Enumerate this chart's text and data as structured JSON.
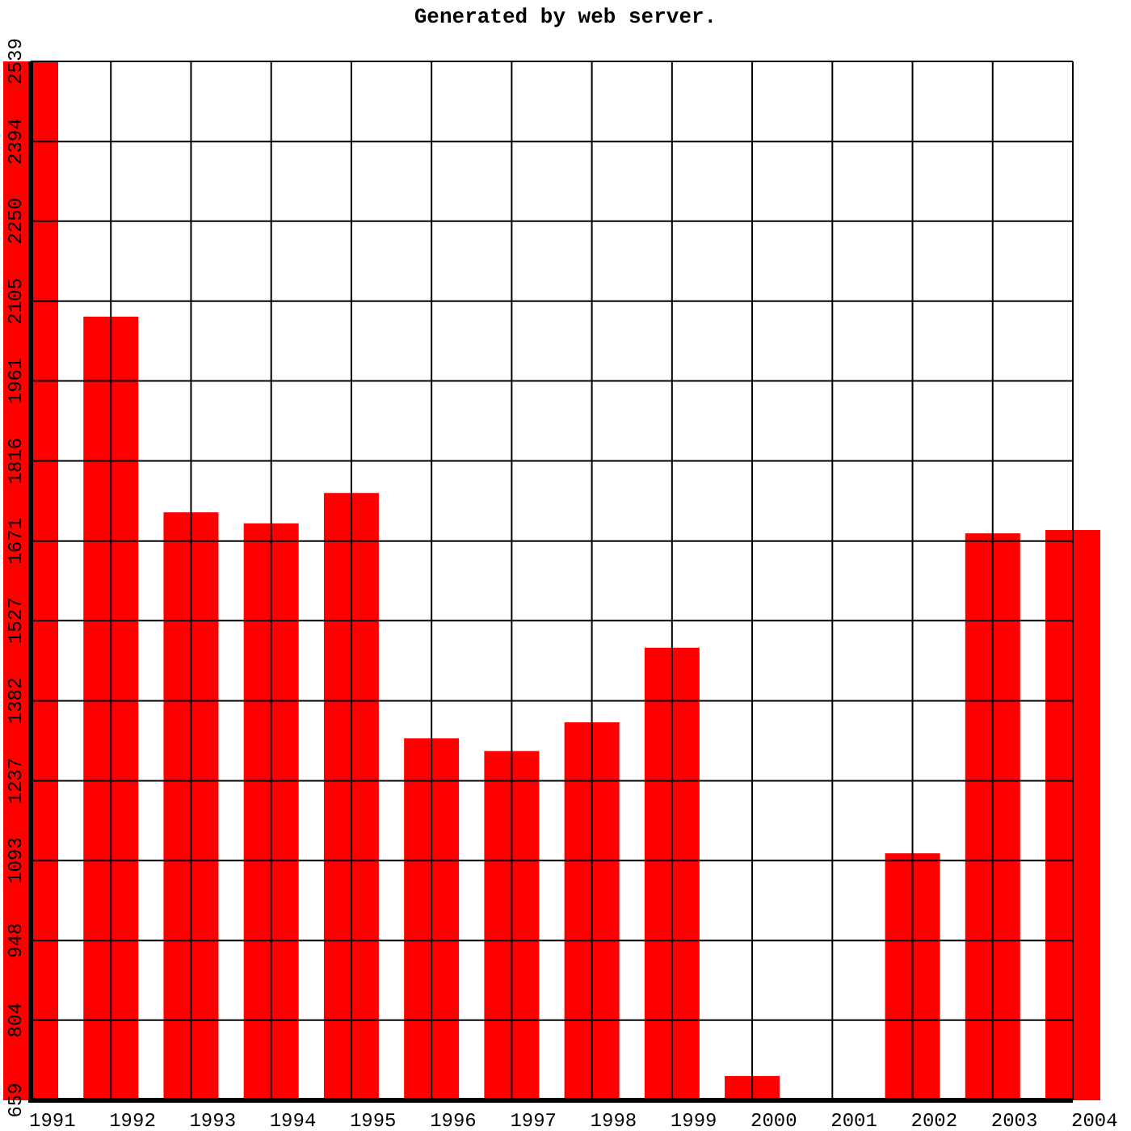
{
  "chart_data": {
    "type": "bar",
    "title": "Generated by web server.",
    "categories": [
      "1991",
      "1992",
      "1993",
      "1994",
      "1995",
      "1996",
      "1997",
      "1998",
      "1999",
      "2000",
      "2001",
      "2002",
      "2003",
      "2004"
    ],
    "values": [
      2539,
      2077,
      1723,
      1703,
      1758,
      1314,
      1291,
      1343,
      1478,
      703,
      null,
      1106,
      1685,
      1691
    ],
    "color": "#ff0000",
    "ylim": [
      659,
      2539
    ],
    "yticks": [
      659,
      804,
      948,
      1093,
      1237,
      1382,
      1527,
      1671,
      1816,
      1961,
      2105,
      2250,
      2394,
      2539
    ],
    "grid": true
  }
}
